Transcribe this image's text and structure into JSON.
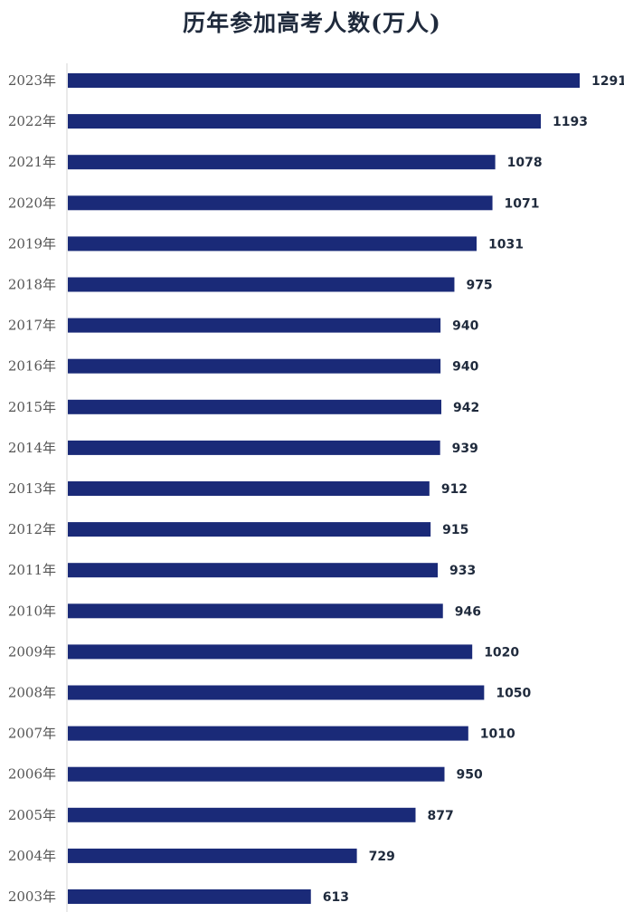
{
  "chart_data": {
    "type": "bar",
    "orientation": "horizontal",
    "title": "历年参加高考人数(万人)",
    "categories": [
      "2023年",
      "2022年",
      "2021年",
      "2020年",
      "2019年",
      "2018年",
      "2017年",
      "2016年",
      "2015年",
      "2014年",
      "2013年",
      "2012年",
      "2011年",
      "2010年",
      "2009年",
      "2008年",
      "2007年",
      "2006年",
      "2005年",
      "2004年",
      "2003年"
    ],
    "values": [
      1291,
      1193,
      1078,
      1071,
      1031,
      975,
      940,
      940,
      942,
      939,
      912,
      915,
      933,
      946,
      1020,
      1050,
      1010,
      950,
      877,
      729,
      613
    ],
    "bar_color": "#1a2a78",
    "data_labels": true,
    "grid": false,
    "legend": "none"
  }
}
